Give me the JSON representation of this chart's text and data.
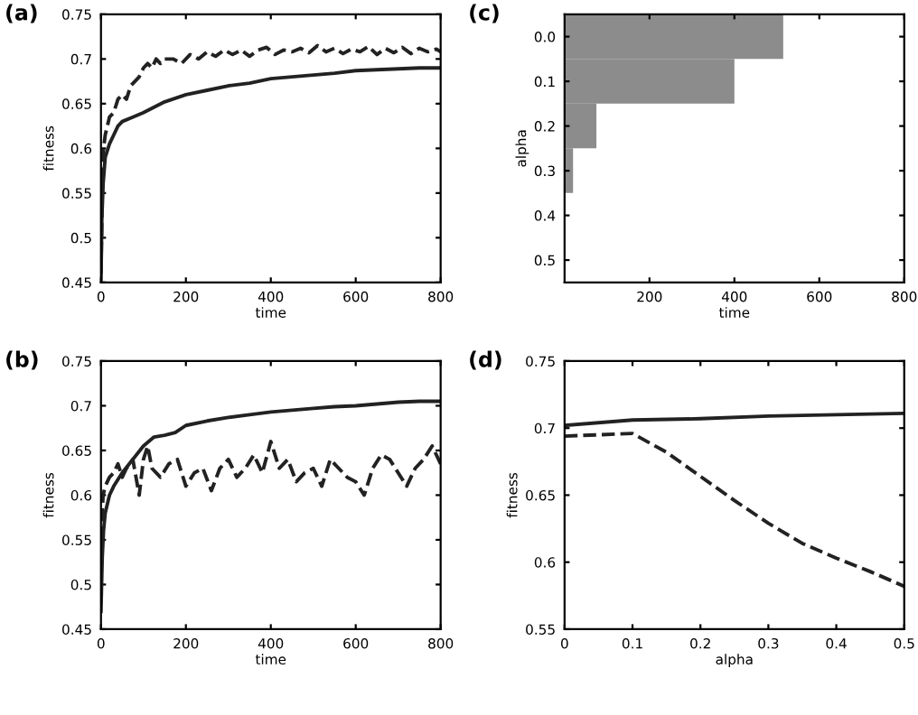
{
  "chart_data": [
    {
      "type": "line",
      "xlabel": "time",
      "ylabel": "fitness",
      "annotations": [
        "(a)"
      ],
      "xlim": [
        0,
        800
      ],
      "ylim": [
        0.45,
        0.75
      ],
      "xticks": [
        0,
        200,
        400,
        600,
        800
      ],
      "yticks": [
        0.45,
        0.5,
        0.55,
        0.6,
        0.65,
        0.7,
        0.75
      ],
      "grid": false,
      "legend": false,
      "marker": "none",
      "series": [
        {
          "color": "#222222",
          "line_style": "solid",
          "x": [
            0,
            2,
            5,
            10,
            20,
            30,
            40,
            50,
            75,
            100,
            150,
            200,
            250,
            300,
            350,
            400,
            450,
            500,
            550,
            600,
            650,
            700,
            750,
            800
          ],
          "values": [
            0.45,
            0.52,
            0.56,
            0.59,
            0.605,
            0.615,
            0.625,
            0.63,
            0.635,
            0.64,
            0.652,
            0.66,
            0.665,
            0.67,
            0.673,
            0.678,
            0.68,
            0.682,
            0.684,
            0.687,
            0.688,
            0.689,
            0.69,
            0.69
          ]
        },
        {
          "color": "#222222",
          "line_style": "dashed",
          "x": [
            0,
            3,
            6,
            10,
            15,
            20,
            30,
            40,
            50,
            60,
            70,
            80,
            90,
            100,
            110,
            120,
            130,
            140,
            150,
            170,
            190,
            210,
            230,
            250,
            270,
            290,
            310,
            330,
            350,
            370,
            390,
            410,
            430,
            450,
            470,
            490,
            510,
            530,
            550,
            570,
            590,
            610,
            630,
            650,
            670,
            690,
            710,
            730,
            750,
            770,
            790,
            800
          ],
          "values": [
            0.46,
            0.55,
            0.6,
            0.615,
            0.625,
            0.635,
            0.64,
            0.655,
            0.66,
            0.655,
            0.67,
            0.675,
            0.68,
            0.69,
            0.695,
            0.69,
            0.7,
            0.695,
            0.7,
            0.7,
            0.695,
            0.705,
            0.7,
            0.708,
            0.703,
            0.71,
            0.705,
            0.71,
            0.703,
            0.71,
            0.713,
            0.705,
            0.71,
            0.708,
            0.712,
            0.707,
            0.715,
            0.708,
            0.712,
            0.706,
            0.711,
            0.708,
            0.714,
            0.705,
            0.712,
            0.707,
            0.713,
            0.706,
            0.712,
            0.708,
            0.711,
            0.708
          ]
        }
      ]
    },
    {
      "type": "bar",
      "orientation": "horizontal",
      "xlabel": "time",
      "ylabel": "alpha",
      "annotations": [
        "(c)"
      ],
      "xlim": [
        0,
        800
      ],
      "xticks": [
        200,
        400,
        600,
        800
      ],
      "grid": false,
      "legend": false,
      "categories": [
        "0.0",
        "0.1",
        "0.2",
        "0.3",
        "0.4",
        "0.5"
      ],
      "values": [
        515,
        400,
        75,
        20,
        null,
        null
      ],
      "color": "#8c8c8c"
    },
    {
      "type": "line",
      "xlabel": "time",
      "ylabel": "fitness",
      "annotations": [
        "(b)"
      ],
      "xlim": [
        0,
        800
      ],
      "ylim": [
        0.45,
        0.75
      ],
      "xticks": [
        0,
        200,
        400,
        600,
        800
      ],
      "yticks": [
        0.45,
        0.5,
        0.55,
        0.6,
        0.65,
        0.7,
        0.75
      ],
      "grid": false,
      "legend": false,
      "marker": "none",
      "series": [
        {
          "color": "#222222",
          "line_style": "solid",
          "x": [
            0,
            3,
            6,
            10,
            20,
            30,
            50,
            75,
            100,
            125,
            150,
            175,
            200,
            250,
            300,
            350,
            400,
            450,
            500,
            550,
            600,
            650,
            700,
            750,
            800
          ],
          "values": [
            0.47,
            0.53,
            0.56,
            0.58,
            0.6,
            0.61,
            0.625,
            0.64,
            0.655,
            0.665,
            0.667,
            0.67,
            0.678,
            0.683,
            0.687,
            0.69,
            0.693,
            0.695,
            0.697,
            0.699,
            0.7,
            0.702,
            0.704,
            0.705,
            0.705
          ]
        },
        {
          "color": "#222222",
          "line_style": "dashed",
          "x": [
            0,
            5,
            10,
            20,
            30,
            40,
            50,
            60,
            75,
            90,
            100,
            110,
            120,
            140,
            160,
            180,
            200,
            220,
            240,
            260,
            280,
            300,
            320,
            340,
            360,
            380,
            400,
            420,
            440,
            460,
            480,
            500,
            520,
            540,
            560,
            580,
            600,
            620,
            640,
            660,
            680,
            700,
            720,
            740,
            760,
            780,
            800
          ],
          "values": [
            0.55,
            0.6,
            0.61,
            0.62,
            0.625,
            0.635,
            0.62,
            0.63,
            0.64,
            0.6,
            0.64,
            0.655,
            0.63,
            0.62,
            0.635,
            0.64,
            0.61,
            0.625,
            0.63,
            0.605,
            0.63,
            0.64,
            0.62,
            0.63,
            0.645,
            0.625,
            0.66,
            0.63,
            0.64,
            0.615,
            0.625,
            0.63,
            0.61,
            0.64,
            0.63,
            0.62,
            0.615,
            0.6,
            0.63,
            0.645,
            0.64,
            0.625,
            0.61,
            0.63,
            0.64,
            0.655,
            0.635
          ]
        }
      ]
    },
    {
      "type": "line",
      "xlabel": "alpha",
      "ylabel": "fitness",
      "annotations": [
        "(d)"
      ],
      "xlim": [
        0,
        0.5
      ],
      "ylim": [
        0.55,
        0.75
      ],
      "xticks": [
        0,
        0.1,
        0.2,
        0.3,
        0.4,
        0.5
      ],
      "yticks": [
        0.55,
        0.6,
        0.65,
        0.7,
        0.75
      ],
      "grid": false,
      "legend": false,
      "marker": "none",
      "series": [
        {
          "color": "#222222",
          "line_style": "solid",
          "x": [
            0,
            0.1,
            0.2,
            0.3,
            0.4,
            0.5
          ],
          "values": [
            0.702,
            0.706,
            0.707,
            0.709,
            0.71,
            0.711
          ]
        },
        {
          "color": "#222222",
          "line_style": "dashed",
          "x": [
            0,
            0.1,
            0.15,
            0.2,
            0.25,
            0.3,
            0.35,
            0.4,
            0.45,
            0.5
          ],
          "values": [
            0.694,
            0.696,
            0.682,
            0.664,
            0.646,
            0.629,
            0.614,
            0.603,
            0.593,
            0.582
          ]
        }
      ]
    }
  ]
}
